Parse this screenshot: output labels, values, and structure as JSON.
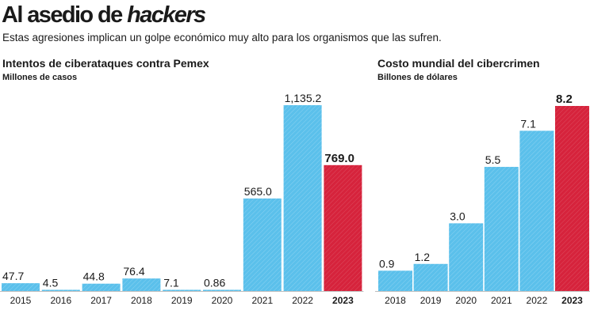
{
  "header": {
    "title_part1": "Al asedio de ",
    "title_part2": "hackers",
    "subtitle": "Estas agresiones implican un golpe económico muy alto para los organismos que las sufren."
  },
  "colors": {
    "bar": "#5bc0eb",
    "highlight": "#d6233c",
    "text": "#1a1a1a"
  },
  "chart_data": [
    {
      "type": "bar",
      "title": "Intentos de ciberataques contra Pemex",
      "ylabel": "Millones de casos",
      "categories": [
        "2015",
        "2016",
        "2017",
        "2018",
        "2019",
        "2020",
        "2021",
        "2022",
        "2023"
      ],
      "values": [
        47.7,
        4.5,
        44.8,
        76.4,
        7.1,
        0.86,
        565.0,
        1135.2,
        769.0
      ],
      "value_labels": [
        "47.7",
        "4.5",
        "44.8",
        "76.4",
        "7.1",
        "0.86",
        "565.0",
        "1,135.2",
        "769.0"
      ],
      "highlight_index": 8,
      "ylim": [
        0,
        1135.2
      ],
      "grid": false
    },
    {
      "type": "bar",
      "title": "Costo mundial del cibercrimen",
      "ylabel": "Billones de dólares",
      "categories": [
        "2018",
        "2019",
        "2020",
        "2021",
        "2022",
        "2023"
      ],
      "values": [
        0.9,
        1.2,
        3.0,
        5.5,
        7.1,
        8.2
      ],
      "value_labels": [
        "0.9",
        "1.2",
        "3.0",
        "5.5",
        "7.1",
        "8.2"
      ],
      "highlight_index": 5,
      "ylim": [
        0,
        8.2
      ],
      "grid": false
    }
  ]
}
